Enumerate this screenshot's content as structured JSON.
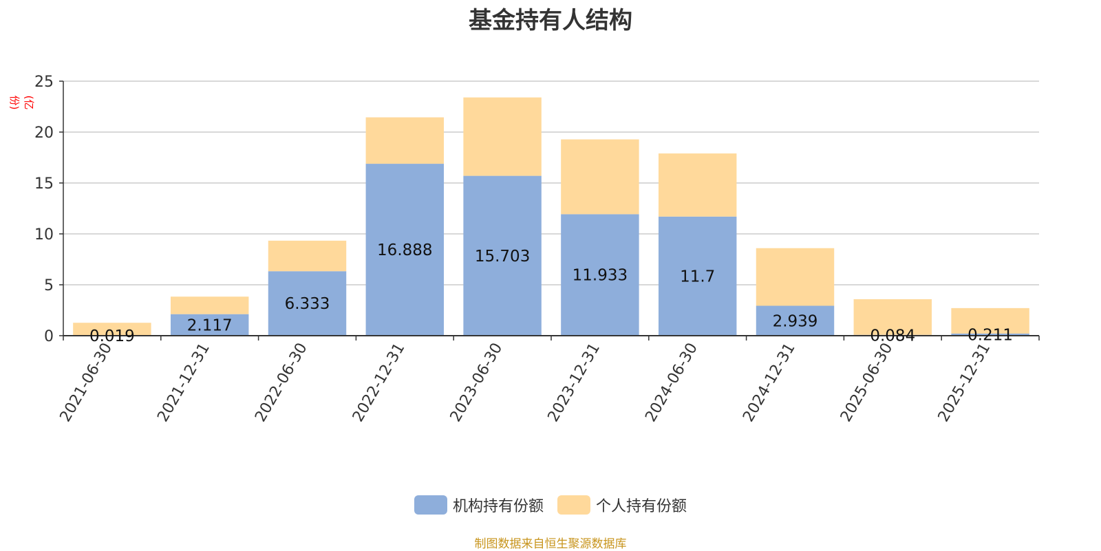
{
  "title": "基金持有人结构",
  "unit_label": "(亿份)",
  "source_note": "制图数据来自恒生聚源数据库",
  "chart_data": {
    "type": "bar",
    "stacked": true,
    "title": "基金持有人结构",
    "xlabel": "",
    "ylabel": "(亿份)",
    "ylim": [
      0,
      25
    ],
    "yticks": [
      0,
      5,
      10,
      15,
      20,
      25
    ],
    "grid": true,
    "legend_position": "bottom",
    "categories": [
      "2021-06-30",
      "2021-12-31",
      "2022-06-30",
      "2022-12-31",
      "2023-06-30",
      "2023-12-31",
      "2024-06-30",
      "2024-12-31",
      "2025-06-30",
      "2025-12-31"
    ],
    "series": [
      {
        "name": "机构持有份额",
        "color": "#8eaedb",
        "values": [
          0.019,
          2.117,
          6.333,
          16.888,
          15.703,
          11.933,
          11.7,
          2.939,
          0.084,
          0.211
        ],
        "labels": [
          "0.019",
          "2.117",
          "6.333",
          "16.888",
          "15.703",
          "11.933",
          "11.7",
          "2.939",
          "0.084",
          "0.211"
        ]
      },
      {
        "name": "个人持有份额",
        "color": "#ffd99b",
        "values": [
          1.25,
          1.72,
          3.0,
          4.56,
          7.7,
          7.35,
          6.2,
          5.66,
          3.5,
          2.5
        ]
      }
    ]
  }
}
